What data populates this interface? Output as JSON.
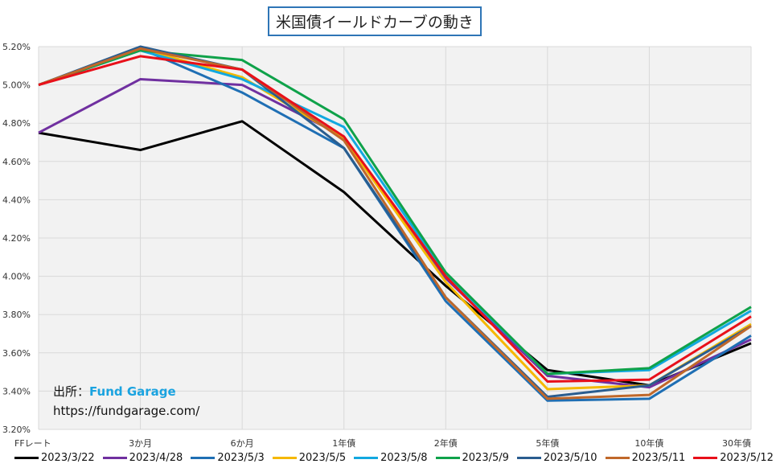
{
  "chart_data": {
    "type": "line",
    "title": "米国債イールドカーブの動き",
    "categories": [
      "FFレート",
      "3か月",
      "6か月",
      "1年債",
      "2年債",
      "5年債",
      "10年債",
      "30年債"
    ],
    "ylim": [
      3.2,
      5.2
    ],
    "yticks": [
      "3.20%",
      "3.40%",
      "3.60%",
      "3.80%",
      "4.00%",
      "4.20%",
      "4.40%",
      "4.60%",
      "4.80%",
      "5.00%",
      "5.20%"
    ],
    "grid": true,
    "legend": "bottom",
    "series": [
      {
        "name": "2023/3/22",
        "color": "#000000",
        "values": [
          4.75,
          4.66,
          4.81,
          4.44,
          3.95,
          3.51,
          3.43,
          3.65
        ]
      },
      {
        "name": "2023/4/28",
        "color": "#7030a0",
        "values": [
          4.75,
          5.03,
          5.0,
          4.73,
          3.99,
          3.48,
          3.42,
          3.67
        ]
      },
      {
        "name": "2023/5/3",
        "color": "#1f6fb4",
        "values": [
          5.0,
          5.19,
          4.96,
          4.67,
          3.87,
          3.35,
          3.36,
          3.69
        ]
      },
      {
        "name": "2023/5/5",
        "color": "#f5b800",
        "values": [
          5.0,
          5.19,
          5.04,
          4.72,
          3.97,
          3.41,
          3.43,
          3.75
        ]
      },
      {
        "name": "2023/5/8",
        "color": "#12a8e0",
        "values": [
          5.0,
          5.18,
          5.03,
          4.78,
          4.01,
          3.49,
          3.51,
          3.82
        ]
      },
      {
        "name": "2023/5/9",
        "color": "#0fa24a",
        "values": [
          5.0,
          5.18,
          5.13,
          4.82,
          4.02,
          3.49,
          3.52,
          3.84
        ]
      },
      {
        "name": "2023/5/10",
        "color": "#2a5d8f",
        "values": [
          5.0,
          5.2,
          5.08,
          4.67,
          3.89,
          3.37,
          3.43,
          3.74
        ]
      },
      {
        "name": "2023/5/11",
        "color": "#c0682a",
        "values": [
          5.0,
          5.19,
          5.08,
          4.71,
          3.89,
          3.36,
          3.38,
          3.74
        ]
      },
      {
        "name": "2023/5/12",
        "color": "#e8101a",
        "values": [
          5.0,
          5.15,
          5.08,
          4.73,
          4.0,
          3.45,
          3.46,
          3.79
        ]
      }
    ]
  },
  "annotation": {
    "source_label": "出所：",
    "source_name": "Fund Garage",
    "url": "https://fundgarage.com/"
  }
}
